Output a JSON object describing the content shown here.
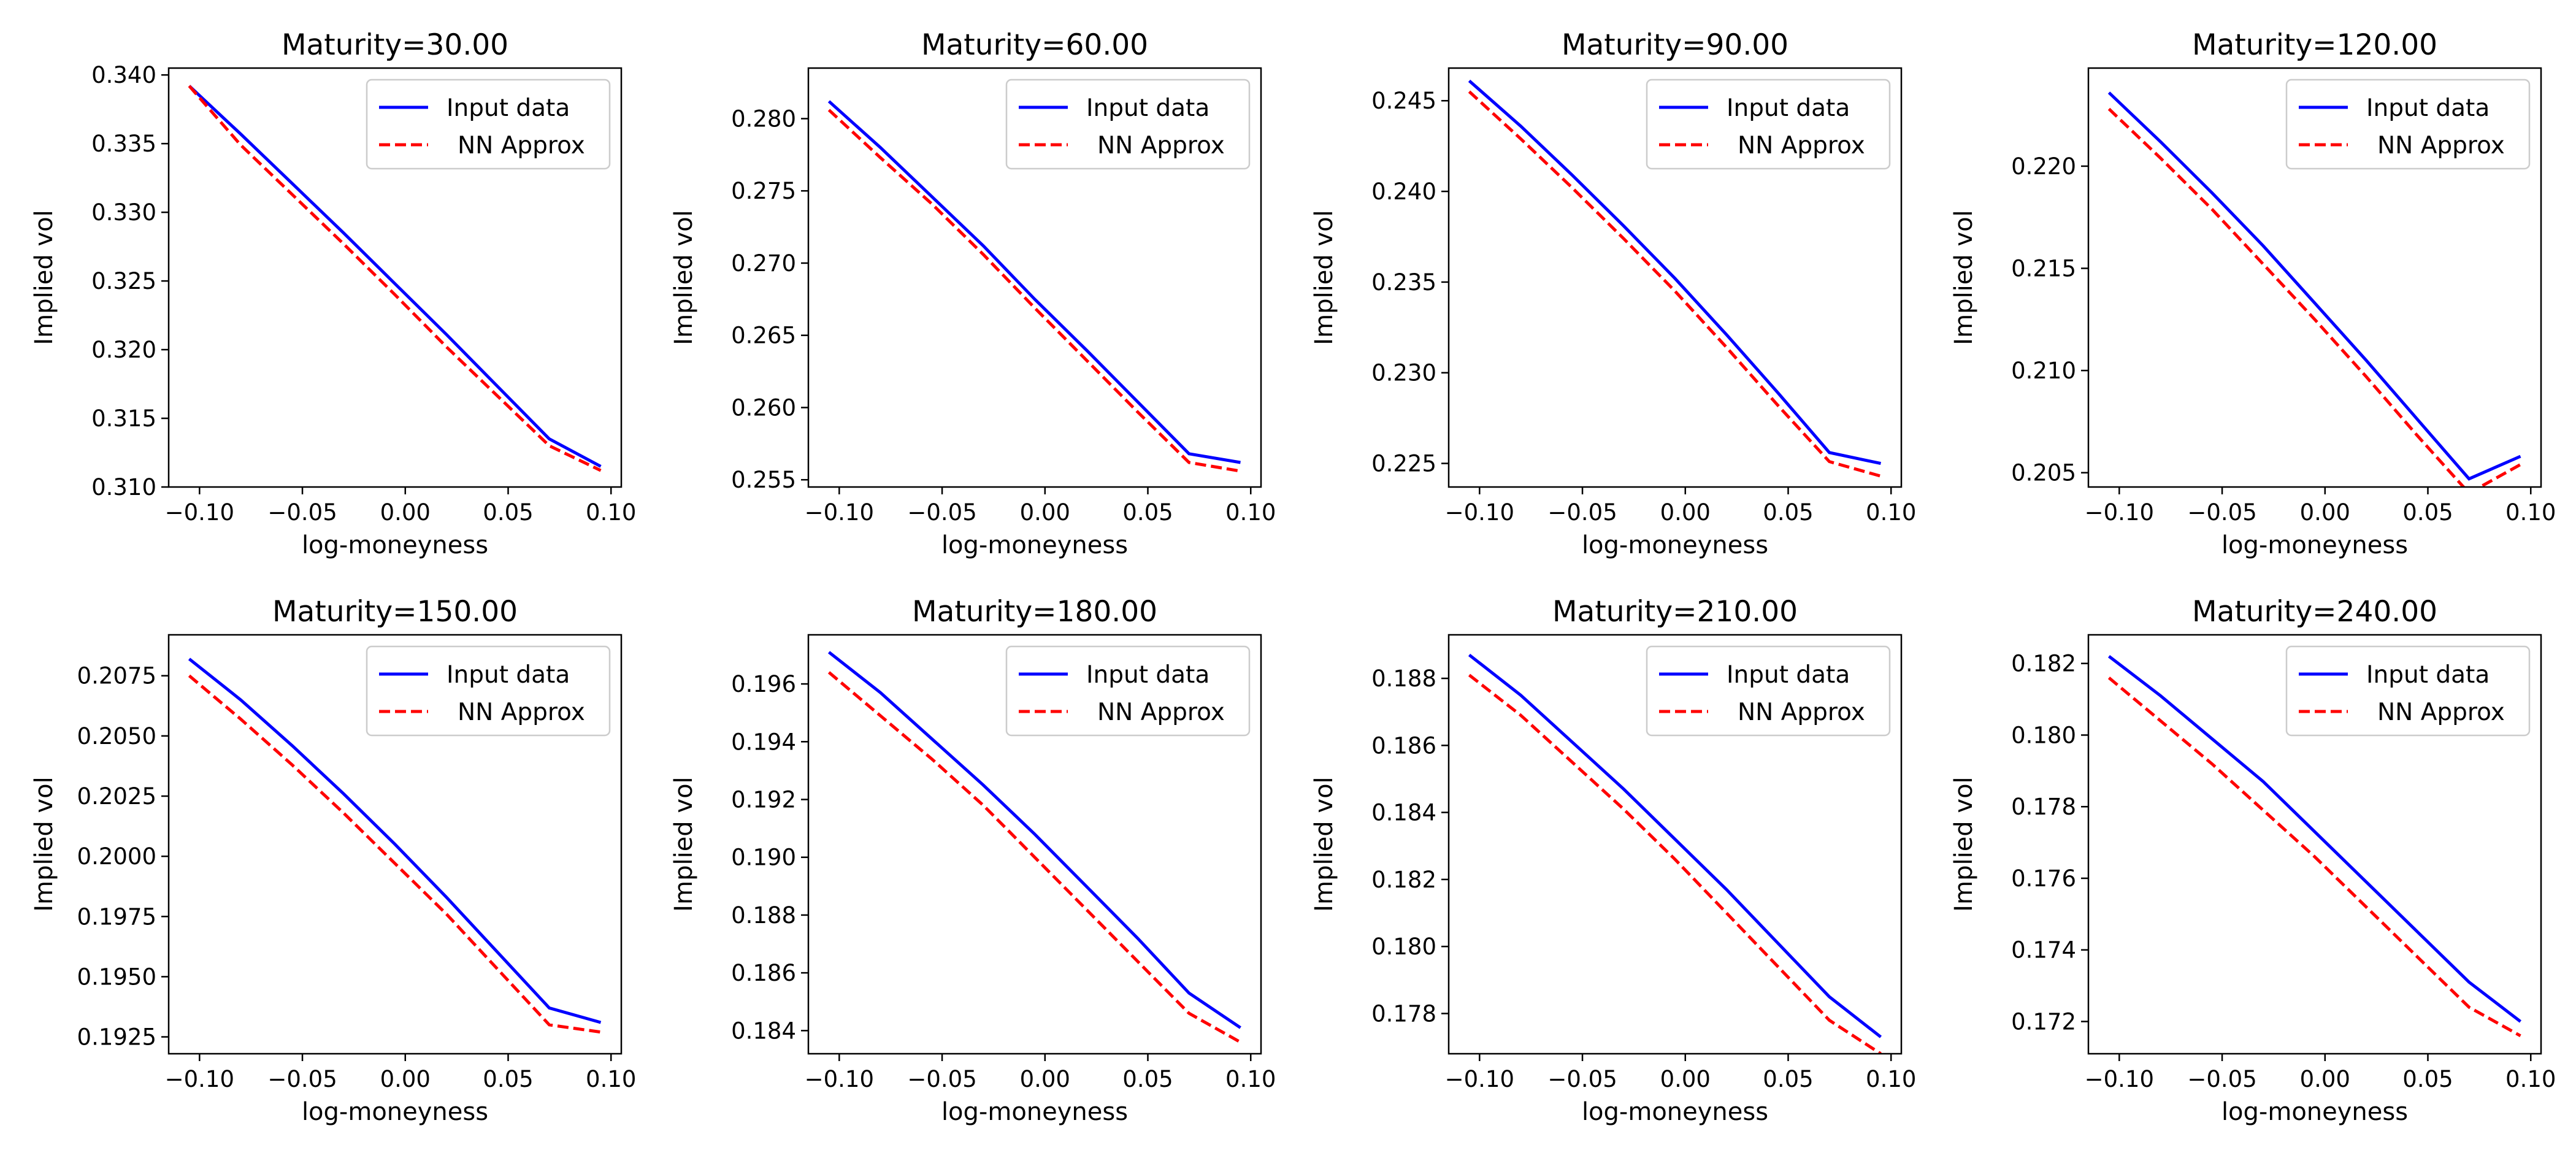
{
  "colors": {
    "input": "#0000ff",
    "nn": "#ff0000",
    "frame": "#000000",
    "legend_border": "#cccccc"
  },
  "legend": {
    "input_label": "Input data",
    "nn_label": "NN Approx"
  },
  "chart_data": [
    {
      "type": "line",
      "title": "Maturity=30.00",
      "xlabel": "log-moneyness",
      "ylabel": "Implied vol",
      "xlim": [
        -0.115,
        0.105
      ],
      "ylim": [
        0.31,
        0.3405
      ],
      "xticks": [
        -0.1,
        -0.05,
        0.0,
        0.05,
        0.1
      ],
      "xtick_labels": [
        "−0.10",
        "−0.05",
        "0.00",
        "0.05",
        "0.10"
      ],
      "yticks": [
        0.31,
        0.315,
        0.32,
        0.325,
        0.33,
        0.335,
        0.34
      ],
      "ytick_labels": [
        "0.310",
        "0.315",
        "0.320",
        "0.325",
        "0.330",
        "0.335",
        "0.340"
      ],
      "legend_position": "upper right",
      "series": [
        {
          "name": "Input data",
          "style": "solid",
          "x": [
            -0.105,
            -0.08,
            -0.055,
            -0.03,
            -0.005,
            0.02,
            0.045,
            0.07,
            0.095
          ],
          "y": [
            0.3392,
            0.3357,
            0.3321,
            0.3285,
            0.3248,
            0.3211,
            0.3173,
            0.3135,
            0.3115
          ]
        },
        {
          "name": "NN Approx",
          "style": "dashed",
          "x": [
            -0.105,
            -0.08,
            -0.055,
            -0.03,
            -0.005,
            0.02,
            0.045,
            0.07,
            0.095
          ],
          "y": [
            0.3392,
            0.3349,
            0.3313,
            0.3277,
            0.324,
            0.3202,
            0.3166,
            0.313,
            0.3112
          ]
        }
      ]
    },
    {
      "type": "line",
      "title": "Maturity=60.00",
      "xlabel": "log-moneyness",
      "ylabel": "Implied vol",
      "xlim": [
        -0.115,
        0.105
      ],
      "ylim": [
        0.2545,
        0.2835
      ],
      "xticks": [
        -0.1,
        -0.05,
        0.0,
        0.05,
        0.1
      ],
      "xtick_labels": [
        "−0.10",
        "−0.05",
        "0.00",
        "0.05",
        "0.10"
      ],
      "yticks": [
        0.255,
        0.26,
        0.265,
        0.27,
        0.275,
        0.28
      ],
      "ytick_labels": [
        "0.255",
        "0.260",
        "0.265",
        "0.270",
        "0.275",
        "0.280"
      ],
      "legend_position": "upper right",
      "series": [
        {
          "name": "Input data",
          "style": "solid",
          "x": [
            -0.105,
            -0.08,
            -0.055,
            -0.03,
            -0.005,
            0.02,
            0.045,
            0.07,
            0.095
          ],
          "y": [
            0.2812,
            0.278,
            0.2746,
            0.2712,
            0.2675,
            0.264,
            0.2604,
            0.2568,
            0.2562
          ]
        },
        {
          "name": "NN Approx",
          "style": "dashed",
          "x": [
            -0.105,
            -0.08,
            -0.055,
            -0.03,
            -0.005,
            0.02,
            0.045,
            0.07,
            0.095
          ],
          "y": [
            0.2806,
            0.2773,
            0.2741,
            0.2706,
            0.2669,
            0.2633,
            0.2597,
            0.2562,
            0.2556
          ]
        }
      ]
    },
    {
      "type": "line",
      "title": "Maturity=90.00",
      "xlabel": "log-moneyness",
      "ylabel": "Implied vol",
      "xlim": [
        -0.115,
        0.105
      ],
      "ylim": [
        0.2237,
        0.2468
      ],
      "xticks": [
        -0.1,
        -0.05,
        0.0,
        0.05,
        0.1
      ],
      "xtick_labels": [
        "−0.10",
        "−0.05",
        "0.00",
        "0.05",
        "0.10"
      ],
      "yticks": [
        0.225,
        0.23,
        0.235,
        0.24,
        0.245
      ],
      "ytick_labels": [
        "0.225",
        "0.230",
        "0.235",
        "0.240",
        "0.245"
      ],
      "legend_position": "upper right",
      "series": [
        {
          "name": "Input data",
          "style": "solid",
          "x": [
            -0.105,
            -0.08,
            -0.055,
            -0.03,
            -0.005,
            0.02,
            0.045,
            0.07,
            0.095
          ],
          "y": [
            0.2461,
            0.2436,
            0.2409,
            0.2381,
            0.2352,
            0.2321,
            0.2289,
            0.2256,
            0.225
          ]
        },
        {
          "name": "NN Approx",
          "style": "dashed",
          "x": [
            -0.105,
            -0.08,
            -0.055,
            -0.03,
            -0.005,
            0.02,
            0.045,
            0.07,
            0.095
          ],
          "y": [
            0.2455,
            0.2429,
            0.2402,
            0.2374,
            0.2345,
            0.2314,
            0.2282,
            0.2251,
            0.2243
          ]
        }
      ]
    },
    {
      "type": "line",
      "title": "Maturity=120.00",
      "xlabel": "log-moneyness",
      "ylabel": "Implied vol",
      "xlim": [
        -0.115,
        0.105
      ],
      "ylim": [
        0.2043,
        0.2248
      ],
      "xticks": [
        -0.1,
        -0.05,
        0.0,
        0.05,
        0.1
      ],
      "xtick_labels": [
        "−0.10",
        "−0.05",
        "0.00",
        "0.05",
        "0.10"
      ],
      "yticks": [
        0.205,
        0.21,
        0.215,
        0.22
      ],
      "ytick_labels": [
        "0.205",
        "0.210",
        "0.215",
        "0.220"
      ],
      "legend_position": "upper right",
      "series": [
        {
          "name": "Input data",
          "style": "solid",
          "x": [
            -0.105,
            -0.08,
            -0.055,
            -0.03,
            -0.005,
            0.02,
            0.045,
            0.07,
            0.095
          ],
          "y": [
            0.2236,
            0.2212,
            0.2187,
            0.2161,
            0.2133,
            0.2105,
            0.2076,
            0.2047,
            0.2058
          ]
        },
        {
          "name": "NN Approx",
          "style": "dashed",
          "x": [
            -0.105,
            -0.08,
            -0.055,
            -0.03,
            -0.005,
            0.02,
            0.045,
            0.07,
            0.095
          ],
          "y": [
            0.2228,
            0.2204,
            0.2179,
            0.2152,
            0.2125,
            0.2097,
            0.2068,
            0.204,
            0.2054
          ]
        }
      ]
    },
    {
      "type": "line",
      "title": "Maturity=150.00",
      "xlabel": "log-moneyness",
      "ylabel": "Implied vol",
      "xlim": [
        -0.115,
        0.105
      ],
      "ylim": [
        0.1918,
        0.2092
      ],
      "xticks": [
        -0.1,
        -0.05,
        0.0,
        0.05,
        0.1
      ],
      "xtick_labels": [
        "−0.10",
        "−0.05",
        "0.00",
        "0.05",
        "0.10"
      ],
      "yticks": [
        0.1925,
        0.195,
        0.1975,
        0.2,
        0.2025,
        0.205,
        0.2075
      ],
      "ytick_labels": [
        "0.1925",
        "0.1950",
        "0.1975",
        "0.2000",
        "0.2025",
        "0.2050",
        "0.2075"
      ],
      "legend_position": "upper right",
      "series": [
        {
          "name": "Input data",
          "style": "solid",
          "x": [
            -0.105,
            -0.08,
            -0.055,
            -0.03,
            -0.005,
            0.02,
            0.045,
            0.07,
            0.095
          ],
          "y": [
            0.2082,
            0.2065,
            0.2046,
            0.2026,
            0.2005,
            0.1983,
            0.196,
            0.1937,
            0.1931
          ]
        },
        {
          "name": "NN Approx",
          "style": "dashed",
          "x": [
            -0.105,
            -0.08,
            -0.055,
            -0.03,
            -0.005,
            0.02,
            0.045,
            0.07,
            0.095
          ],
          "y": [
            0.2075,
            0.2057,
            0.2038,
            0.2018,
            0.1997,
            0.1976,
            0.1953,
            0.193,
            0.1927
          ]
        }
      ]
    },
    {
      "type": "line",
      "title": "Maturity=180.00",
      "xlabel": "log-moneyness",
      "ylabel": "Implied vol",
      "xlim": [
        -0.115,
        0.105
      ],
      "ylim": [
        0.1832,
        0.1977
      ],
      "xticks": [
        -0.1,
        -0.05,
        0.0,
        0.05,
        0.1
      ],
      "xtick_labels": [
        "−0.10",
        "−0.05",
        "0.00",
        "0.05",
        "0.10"
      ],
      "yticks": [
        0.184,
        0.186,
        0.188,
        0.19,
        0.192,
        0.194,
        0.196
      ],
      "ytick_labels": [
        "0.184",
        "0.186",
        "0.188",
        "0.190",
        "0.192",
        "0.194",
        "0.196"
      ],
      "legend_position": "upper right",
      "series": [
        {
          "name": "Input data",
          "style": "solid",
          "x": [
            -0.105,
            -0.08,
            -0.055,
            -0.03,
            -0.005,
            0.02,
            0.045,
            0.07,
            0.095
          ],
          "y": [
            0.1971,
            0.1957,
            0.1941,
            0.1925,
            0.1908,
            0.189,
            0.1872,
            0.1853,
            0.1841
          ]
        },
        {
          "name": "NN Approx",
          "style": "dashed",
          "x": [
            -0.105,
            -0.08,
            -0.055,
            -0.03,
            -0.005,
            0.02,
            0.045,
            0.07,
            0.095
          ],
          "y": [
            0.1964,
            0.1949,
            0.1934,
            0.1918,
            0.19,
            0.1882,
            0.1864,
            0.1846,
            0.1836
          ]
        }
      ]
    },
    {
      "type": "line",
      "title": "Maturity=210.00",
      "xlabel": "log-moneyness",
      "ylabel": "Implied vol",
      "xlim": [
        -0.115,
        0.105
      ],
      "ylim": [
        0.1768,
        0.1893
      ],
      "xticks": [
        -0.1,
        -0.05,
        0.0,
        0.05,
        0.1
      ],
      "xtick_labels": [
        "−0.10",
        "−0.05",
        "0.00",
        "0.05",
        "0.10"
      ],
      "yticks": [
        0.178,
        0.18,
        0.182,
        0.184,
        0.186,
        0.188
      ],
      "ytick_labels": [
        "0.178",
        "0.180",
        "0.182",
        "0.184",
        "0.186",
        "0.188"
      ],
      "legend_position": "upper right",
      "series": [
        {
          "name": "Input data",
          "style": "solid",
          "x": [
            -0.105,
            -0.08,
            -0.055,
            -0.03,
            -0.005,
            0.02,
            0.045,
            0.07,
            0.095
          ],
          "y": [
            0.1887,
            0.1875,
            0.1861,
            0.1847,
            0.1832,
            0.1817,
            0.1801,
            0.1785,
            0.1773
          ]
        },
        {
          "name": "NN Approx",
          "style": "dashed",
          "x": [
            -0.105,
            -0.08,
            -0.055,
            -0.03,
            -0.005,
            0.02,
            0.045,
            0.07,
            0.095
          ],
          "y": [
            0.1881,
            0.1869,
            0.1855,
            0.1841,
            0.1826,
            0.181,
            0.1794,
            0.1778,
            0.1768
          ]
        }
      ]
    },
    {
      "type": "line",
      "title": "Maturity=240.00",
      "xlabel": "log-moneyness",
      "ylabel": "Implied vol",
      "xlim": [
        -0.115,
        0.105
      ],
      "ylim": [
        0.1711,
        0.1828
      ],
      "xticks": [
        -0.1,
        -0.05,
        0.0,
        0.05,
        0.1
      ],
      "xtick_labels": [
        "−0.10",
        "−0.05",
        "0.00",
        "0.05",
        "0.10"
      ],
      "yticks": [
        0.172,
        0.174,
        0.176,
        0.178,
        0.18,
        0.182
      ],
      "ytick_labels": [
        "0.172",
        "0.174",
        "0.176",
        "0.178",
        "0.180",
        "0.182"
      ],
      "legend_position": "upper right",
      "series": [
        {
          "name": "Input data",
          "style": "solid",
          "x": [
            -0.105,
            -0.08,
            -0.055,
            -0.03,
            -0.005,
            0.02,
            0.045,
            0.07,
            0.095
          ],
          "y": [
            0.1822,
            0.1811,
            0.1799,
            0.1787,
            0.1773,
            0.1759,
            0.1745,
            0.1731,
            0.172
          ]
        },
        {
          "name": "NN Approx",
          "style": "dashed",
          "x": [
            -0.105,
            -0.08,
            -0.055,
            -0.03,
            -0.005,
            0.02,
            0.045,
            0.07,
            0.095
          ],
          "y": [
            0.1816,
            0.1804,
            0.1792,
            0.1779,
            0.1766,
            0.1752,
            0.1738,
            0.1724,
            0.1716
          ]
        }
      ]
    }
  ]
}
